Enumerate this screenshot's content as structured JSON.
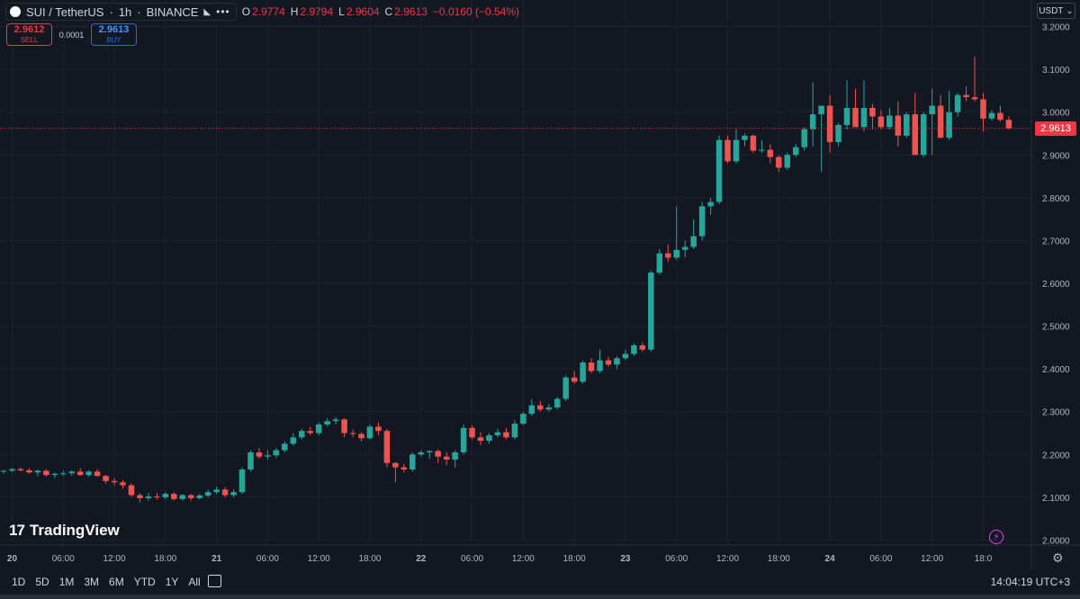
{
  "legend": {
    "symbol": "SUI / TetherUS",
    "timeframe": "1h",
    "exchange": "BINANCE",
    "ohlc": [
      {
        "k": "O",
        "v": "2.9774"
      },
      {
        "k": "H",
        "v": "2.9794"
      },
      {
        "k": "L",
        "v": "2.9604"
      },
      {
        "k": "C",
        "v": "2.9613"
      }
    ],
    "change": "−0.0160 (−0.54%)"
  },
  "trade": {
    "sell_price": "2.9612",
    "sell_label": "SELL",
    "spread": "0.0001",
    "buy_price": "2.9613",
    "buy_label": "BUY"
  },
  "currency": "USDT",
  "last_price_label": "2.9613",
  "brand": "TradingView",
  "bottom_bar": {
    "ranges": [
      "1D",
      "5D",
      "1M",
      "3M",
      "6M",
      "YTD",
      "1Y",
      "All"
    ],
    "clock": "14:04:19 UTC+3"
  },
  "colors": {
    "up": "#26a69a",
    "down": "#ef5350",
    "background": "#131722",
    "grid": "#1e222d",
    "last_price_line": "#f23645"
  },
  "chart_data": {
    "type": "candlestick",
    "interval": "1h",
    "y_axis": {
      "ticks": [
        "2.0000",
        "2.1000",
        "2.2000",
        "2.3000",
        "2.4000",
        "2.5000",
        "2.6000",
        "2.7000",
        "2.8000",
        "2.9000",
        "3.0000",
        "3.1000",
        "3.2000"
      ],
      "ylim": [
        1.98,
        3.22
      ]
    },
    "x_axis": {
      "ticks": [
        {
          "label": "20",
          "i": 1
        },
        {
          "label": "06:00",
          "i": 7
        },
        {
          "label": "12:00",
          "i": 13
        },
        {
          "label": "18:00",
          "i": 19
        },
        {
          "label": "21",
          "i": 25
        },
        {
          "label": "06:00",
          "i": 31
        },
        {
          "label": "12:00",
          "i": 37
        },
        {
          "label": "18:00",
          "i": 43
        },
        {
          "label": "22",
          "i": 49
        },
        {
          "label": "06:00",
          "i": 55
        },
        {
          "label": "12:00",
          "i": 61
        },
        {
          "label": "18:00",
          "i": 67
        },
        {
          "label": "23",
          "i": 73
        },
        {
          "label": "06:00",
          "i": 79
        },
        {
          "label": "12:00",
          "i": 85
        },
        {
          "label": "18:00",
          "i": 91
        },
        {
          "label": "24",
          "i": 97
        },
        {
          "label": "06:00",
          "i": 103
        },
        {
          "label": "12:00",
          "i": 109
        },
        {
          "label": "18:0",
          "i": 115
        }
      ]
    },
    "candles": [
      [
        2.16,
        2.163,
        2.155,
        2.162
      ],
      [
        2.162,
        2.168,
        2.158,
        2.166
      ],
      [
        2.166,
        2.17,
        2.16,
        2.163
      ],
      [
        2.163,
        2.168,
        2.155,
        2.158
      ],
      [
        2.158,
        2.165,
        2.15,
        2.162
      ],
      [
        2.162,
        2.166,
        2.148,
        2.152
      ],
      [
        2.152,
        2.158,
        2.145,
        2.155
      ],
      [
        2.155,
        2.162,
        2.15,
        2.156
      ],
      [
        2.156,
        2.163,
        2.15,
        2.16
      ],
      [
        2.16,
        2.168,
        2.15,
        2.152
      ],
      [
        2.152,
        2.163,
        2.148,
        2.16
      ],
      [
        2.16,
        2.165,
        2.148,
        2.15
      ],
      [
        2.15,
        2.152,
        2.132,
        2.138
      ],
      [
        2.138,
        2.145,
        2.128,
        2.135
      ],
      [
        2.135,
        2.14,
        2.12,
        2.128
      ],
      [
        2.128,
        2.132,
        2.1,
        2.105
      ],
      [
        2.105,
        2.11,
        2.088,
        2.098
      ],
      [
        2.098,
        2.11,
        2.092,
        2.102
      ],
      [
        2.102,
        2.11,
        2.095,
        2.1
      ],
      [
        2.1,
        2.112,
        2.095,
        2.108
      ],
      [
        2.108,
        2.112,
        2.092,
        2.096
      ],
      [
        2.096,
        2.108,
        2.092,
        2.105
      ],
      [
        2.105,
        2.108,
        2.092,
        2.098
      ],
      [
        2.098,
        2.108,
        2.095,
        2.104
      ],
      [
        2.104,
        2.118,
        2.1,
        2.112
      ],
      [
        2.112,
        2.125,
        2.108,
        2.118
      ],
      [
        2.118,
        2.124,
        2.1,
        2.105
      ],
      [
        2.105,
        2.118,
        2.1,
        2.112
      ],
      [
        2.112,
        2.17,
        2.108,
        2.165
      ],
      [
        2.165,
        2.21,
        2.16,
        2.205
      ],
      [
        2.205,
        2.215,
        2.19,
        2.195
      ],
      [
        2.195,
        2.21,
        2.188,
        2.198
      ],
      [
        2.198,
        2.215,
        2.192,
        2.21
      ],
      [
        2.21,
        2.23,
        2.205,
        2.225
      ],
      [
        2.225,
        2.25,
        2.22,
        2.24
      ],
      [
        2.24,
        2.26,
        2.235,
        2.255
      ],
      [
        2.255,
        2.265,
        2.245,
        2.25
      ],
      [
        2.25,
        2.275,
        2.245,
        2.27
      ],
      [
        2.27,
        2.285,
        2.265,
        2.278
      ],
      [
        2.278,
        2.288,
        2.27,
        2.282
      ],
      [
        2.282,
        2.285,
        2.24,
        2.25
      ],
      [
        2.25,
        2.258,
        2.24,
        2.248
      ],
      [
        2.248,
        2.252,
        2.23,
        2.238
      ],
      [
        2.238,
        2.27,
        2.235,
        2.265
      ],
      [
        2.265,
        2.275,
        2.245,
        2.255
      ],
      [
        2.255,
        2.26,
        2.17,
        2.18
      ],
      [
        2.18,
        2.182,
        2.135,
        2.17
      ],
      [
        2.17,
        2.178,
        2.158,
        2.165
      ],
      [
        2.165,
        2.205,
        2.16,
        2.2
      ],
      [
        2.2,
        2.21,
        2.195,
        2.205
      ],
      [
        2.205,
        2.21,
        2.19,
        2.208
      ],
      [
        2.208,
        2.212,
        2.18,
        2.195
      ],
      [
        2.195,
        2.205,
        2.175,
        2.188
      ],
      [
        2.188,
        2.21,
        2.17,
        2.205
      ],
      [
        2.205,
        2.27,
        2.2,
        2.262
      ],
      [
        2.262,
        2.268,
        2.235,
        2.24
      ],
      [
        2.24,
        2.252,
        2.222,
        2.232
      ],
      [
        2.232,
        2.25,
        2.225,
        2.245
      ],
      [
        2.245,
        2.26,
        2.24,
        2.252
      ],
      [
        2.252,
        2.262,
        2.235,
        2.24
      ],
      [
        2.24,
        2.28,
        2.235,
        2.272
      ],
      [
        2.272,
        2.3,
        2.268,
        2.295
      ],
      [
        2.295,
        2.33,
        2.29,
        2.315
      ],
      [
        2.315,
        2.325,
        2.3,
        2.305
      ],
      [
        2.305,
        2.318,
        2.3,
        2.31
      ],
      [
        2.31,
        2.335,
        2.305,
        2.33
      ],
      [
        2.33,
        2.385,
        2.325,
        2.38
      ],
      [
        2.38,
        2.395,
        2.365,
        2.37
      ],
      [
        2.37,
        2.42,
        2.365,
        2.415
      ],
      [
        2.415,
        2.425,
        2.39,
        2.395
      ],
      [
        2.395,
        2.445,
        2.39,
        2.42
      ],
      [
        2.42,
        2.428,
        2.405,
        2.41
      ],
      [
        2.41,
        2.43,
        2.4,
        2.425
      ],
      [
        2.425,
        2.445,
        2.42,
        2.435
      ],
      [
        2.435,
        2.46,
        2.43,
        2.455
      ],
      [
        2.455,
        2.462,
        2.44,
        2.445
      ],
      [
        2.445,
        2.63,
        2.44,
        2.625
      ],
      [
        2.625,
        2.68,
        2.62,
        2.67
      ],
      [
        2.67,
        2.69,
        2.65,
        2.66
      ],
      [
        2.66,
        2.78,
        2.655,
        2.678
      ],
      [
        2.678,
        2.7,
        2.66,
        2.685
      ],
      [
        2.685,
        2.75,
        2.68,
        2.71
      ],
      [
        2.71,
        2.79,
        2.7,
        2.78
      ],
      [
        2.78,
        2.8,
        2.76,
        2.79
      ],
      [
        2.79,
        2.945,
        2.785,
        2.935
      ],
      [
        2.935,
        2.945,
        2.88,
        2.885
      ],
      [
        2.885,
        2.96,
        2.88,
        2.935
      ],
      [
        2.935,
        2.95,
        2.92,
        2.945
      ],
      [
        2.945,
        2.948,
        2.905,
        2.91
      ],
      [
        2.91,
        2.935,
        2.905,
        2.912
      ],
      [
        2.912,
        2.925,
        2.88,
        2.895
      ],
      [
        2.895,
        2.9,
        2.86,
        2.87
      ],
      [
        2.87,
        2.905,
        2.865,
        2.9
      ],
      [
        2.9,
        2.925,
        2.895,
        2.918
      ],
      [
        2.918,
        2.965,
        2.91,
        2.96
      ],
      [
        2.96,
        3.07,
        2.92,
        2.995
      ],
      [
        2.995,
        3.015,
        2.86,
        3.015
      ],
      [
        3.015,
        3.04,
        2.905,
        2.93
      ],
      [
        2.93,
        2.975,
        2.92,
        2.97
      ],
      [
        2.97,
        3.075,
        2.96,
        3.01
      ],
      [
        3.01,
        3.055,
        2.97,
        2.965
      ],
      [
        2.965,
        3.075,
        2.955,
        3.01
      ],
      [
        3.01,
        3.02,
        2.96,
        2.99
      ],
      [
        2.99,
        3.005,
        2.96,
        2.965
      ],
      [
        2.965,
        3.01,
        2.96,
        2.992
      ],
      [
        2.992,
        3.025,
        2.92,
        2.945
      ],
      [
        2.945,
        3.0,
        2.94,
        2.995
      ],
      [
        2.995,
        3.045,
        2.9,
        2.9
      ],
      [
        2.9,
        3.0,
        2.895,
        2.995
      ],
      [
        2.995,
        3.055,
        2.9,
        3.015
      ],
      [
        3.015,
        3.04,
        2.94,
        2.94
      ],
      [
        2.94,
        3.05,
        2.935,
        3.0
      ],
      [
        3.0,
        3.045,
        2.99,
        3.04
      ],
      [
        3.04,
        3.06,
        3.025,
        3.035
      ],
      [
        3.035,
        3.13,
        3.025,
        3.03
      ],
      [
        3.03,
        3.045,
        2.955,
        2.985
      ],
      [
        2.985,
        3.005,
        2.98,
        2.998
      ],
      [
        2.998,
        3.015,
        2.978,
        2.982
      ],
      [
        2.982,
        2.99,
        2.96,
        2.962
      ]
    ]
  }
}
